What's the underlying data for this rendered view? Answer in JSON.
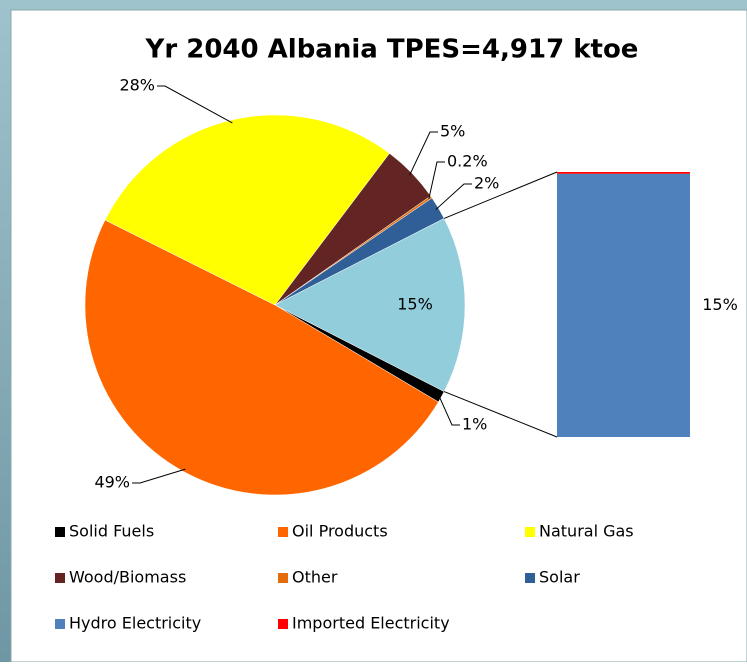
{
  "chart_data": {
    "type": "pie-of-bar",
    "title": "Yr 2040   Albania  TPES=4,917 ktoe",
    "categories": [
      "Solid Fuels",
      "Oil Products",
      "Natural Gas",
      "Wood/Biomass",
      "Other",
      "Solar",
      "Hydro Electricity",
      "Imported Electricity"
    ],
    "values": [
      1,
      49,
      28,
      5,
      0.2,
      2,
      15,
      0.1
    ],
    "value_labels": [
      "1%",
      "49%",
      "28%",
      "5%",
      "0.2%",
      "2%",
      "15%",
      null
    ],
    "colors": [
      "#000000",
      "#ff6600",
      "#ffff00",
      "#632523",
      "#e46c0a",
      "#2f5f96",
      "#4f81bd",
      "#ff0000"
    ],
    "pie_count": 6,
    "combined_label": "15%",
    "combined_color": "#92cddc",
    "legend": "bottom"
  }
}
